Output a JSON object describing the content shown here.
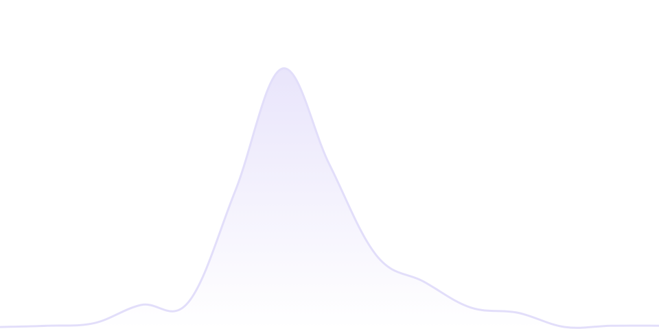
{
  "chart_data": {
    "type": "area",
    "values": [
      0.5,
      1,
      2,
      9,
      10,
      53,
      100,
      63,
      28,
      18,
      8,
      6,
      0.5,
      1,
      1
    ],
    "ylim": [
      0,
      100
    ],
    "smooth": true,
    "grid": false,
    "axes_visible": false,
    "stroke_color": "#e2defa",
    "fill_color_top": "#e9e5fb",
    "fill_color_bottom": "#ffffff"
  }
}
